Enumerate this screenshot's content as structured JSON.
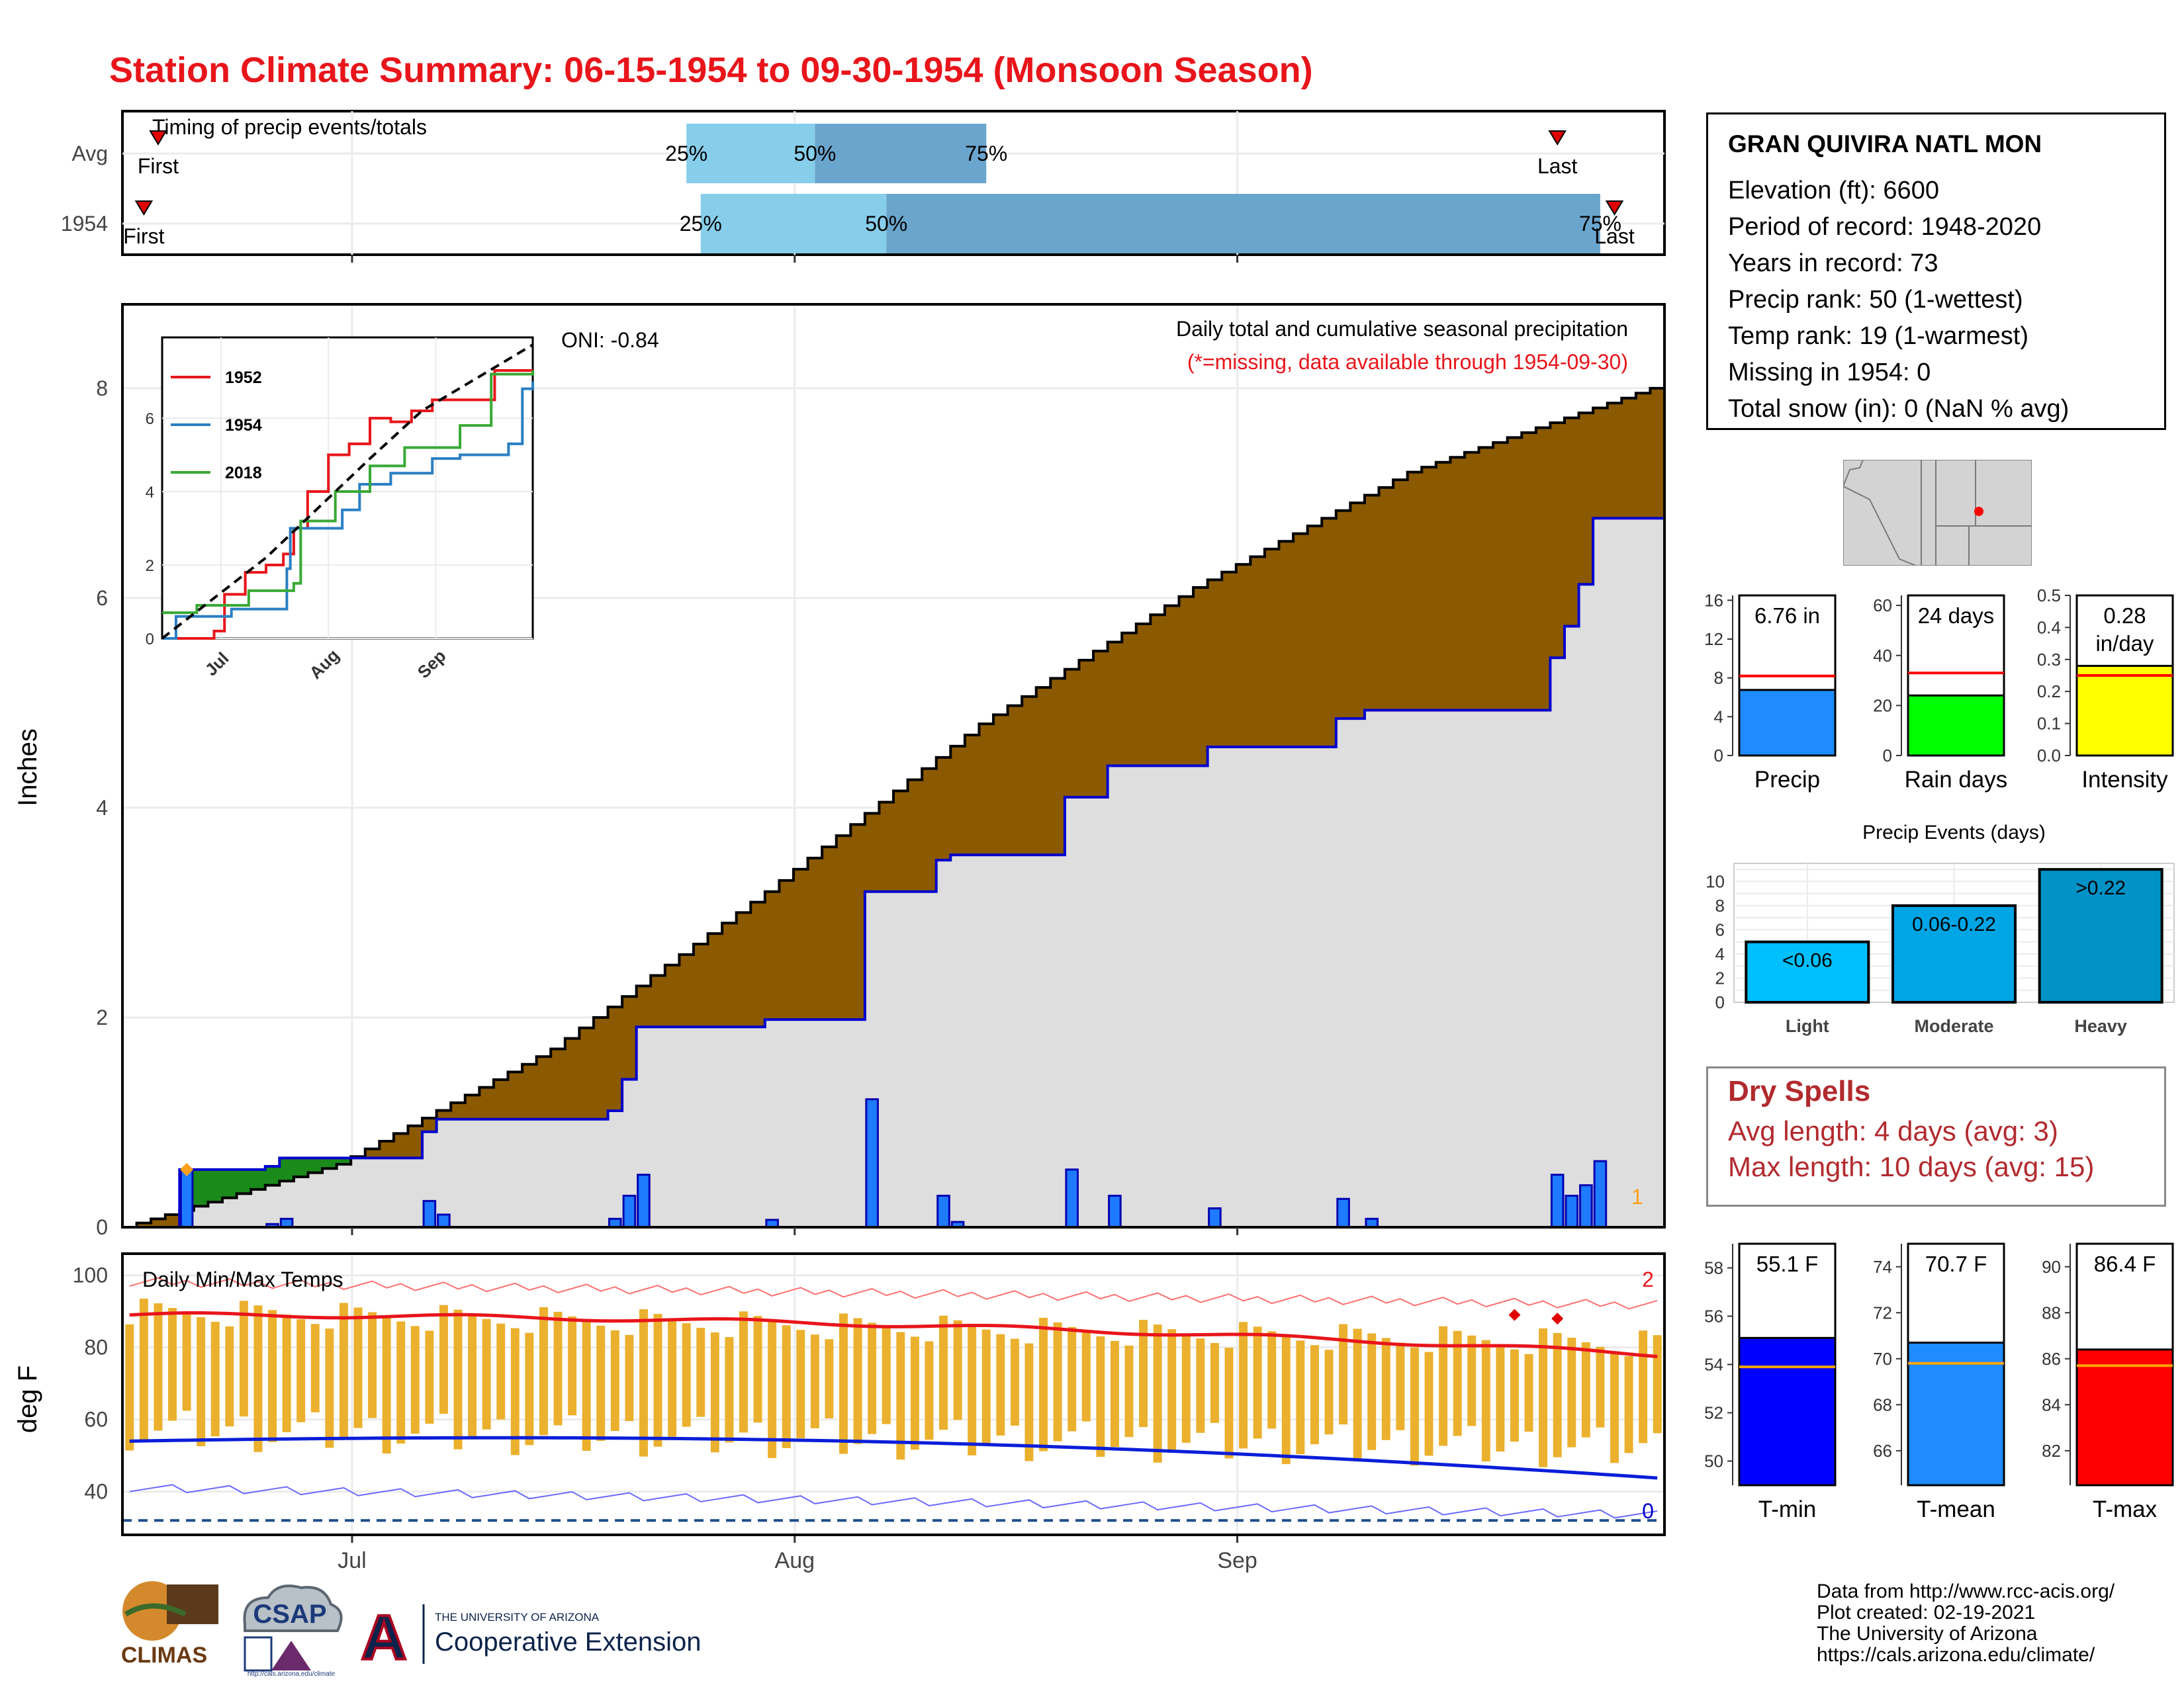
{
  "title": "Station Climate Summary: 06-15-1954 to 09-30-1954 (Monsoon Season)",
  "station": {
    "name": "GRAN QUIVIRA NATL MON",
    "rows": [
      "Elevation (ft): 6600",
      "Period of record: 1948-2020",
      "Years in record: 73",
      "Precip rank: 50 (1-wettest)",
      "Temp rank: 19 (1-warmest)",
      "Missing in 1954: 0",
      "Total snow (in): 0 (NaN % avg)"
    ]
  },
  "dry_spells": {
    "title": "Dry Spells",
    "avg": "Avg length: 4 days (avg: 3)",
    "max": "Max length: 10 days (avg: 15)"
  },
  "credits": [
    "Data from http://www.rcc-acis.org/",
    "Plot created: 02-19-2021",
    "The University of Arizona",
    "https://cals.arizona.edu/climate/"
  ],
  "logos": {
    "climas": "CLIMAS",
    "csap": "CSAP",
    "csap_url": "http://cals.arizona.edu/climate",
    "ua_small": "THE UNIVERSITY OF ARIZONA",
    "ua_big": "Cooperative Extension",
    "ua_letter": "A"
  },
  "colors": {
    "title": "#e8151b",
    "avg_fill": "#8b5a00",
    "deficit_fill": "#1a8a1a",
    "obs_line": "#0000cd",
    "bar_blue": "#1e7bff",
    "temp_bar": "#ebb02d",
    "tmax_line": "#e8151b",
    "tmin_line": "#0a1ed8"
  },
  "chart_data": [
    {
      "type": "timeline",
      "title": "Timing of precip events/totals",
      "rows": [
        {
          "label": "Avg",
          "first": "06-17",
          "p25": "07-24",
          "p50": "08-02",
          "p75": "08-14",
          "last": "09-23",
          "first_label": "First",
          "last_label": "Last",
          "p25_label": "25%",
          "p50_label": "50%",
          "p75_label": "75%"
        },
        {
          "label": "1954",
          "first": "06-16",
          "p25": "07-25",
          "p50": "08-07",
          "p75": "09-26",
          "last": "09-27",
          "first_label": "First",
          "last_label": "Last",
          "p25_label": "25%",
          "p50_label": "50%",
          "p75_label": "75%"
        }
      ],
      "x_ticks": [
        "Jul",
        "Aug",
        "Sep"
      ]
    },
    {
      "type": "line",
      "title": "Daily total and cumulative seasonal precipitation",
      "subtitle": "(*=missing, data available through 1954-09-30)",
      "annotation": "ONI: -0.84",
      "ylabel": "Inches",
      "ylim": [
        0,
        8.8
      ],
      "y_ticks": [
        "0",
        "2",
        "4",
        "6",
        "8"
      ],
      "x_ticks": [
        "Jul",
        "Aug",
        "Sep"
      ],
      "start_date": "1954-06-15",
      "end_date": "1954-09-30",
      "avg_cumulative": {
        "days": [
          0,
          15,
          30,
          45,
          60,
          75,
          90,
          107
        ],
        "values": [
          0,
          0.6,
          1.7,
          3.2,
          4.8,
          6.1,
          7.2,
          8.0
        ]
      },
      "daily_precip_1954": [
        {
          "date": "06-19",
          "value": 0.55
        },
        {
          "date": "06-25",
          "value": 0.03
        },
        {
          "date": "06-26",
          "value": 0.08
        },
        {
          "date": "07-06",
          "value": 0.25
        },
        {
          "date": "07-07",
          "value": 0.12
        },
        {
          "date": "07-19",
          "value": 0.08
        },
        {
          "date": "07-20",
          "value": 0.3
        },
        {
          "date": "07-21",
          "value": 0.5
        },
        {
          "date": "07-30",
          "value": 0.07
        },
        {
          "date": "08-06",
          "value": 1.22
        },
        {
          "date": "08-11",
          "value": 0.3
        },
        {
          "date": "08-12",
          "value": 0.05
        },
        {
          "date": "08-20",
          "value": 0.55
        },
        {
          "date": "08-23",
          "value": 0.3
        },
        {
          "date": "08-30",
          "value": 0.18
        },
        {
          "date": "09-08",
          "value": 0.27
        },
        {
          "date": "09-10",
          "value": 0.08
        },
        {
          "date": "09-23",
          "value": 0.5
        },
        {
          "date": "09-24",
          "value": 0.3
        },
        {
          "date": "09-25",
          "value": 0.4
        },
        {
          "date": "09-26",
          "value": 0.63
        }
      ],
      "cumulative_1954_final": 6.76,
      "missing_label": "1",
      "inset": {
        "type": "line",
        "x_ticks": [
          "Jul",
          "Aug",
          "Sep"
        ],
        "y_ticks": [
          "0",
          "2",
          "4",
          "6"
        ],
        "ylim": [
          0,
          8.2
        ],
        "series": [
          {
            "name": "1952",
            "color": "#e8151b",
            "days": [
              0,
              15,
              18,
              24,
              30,
              35,
              38,
              42,
              48,
              54,
              60,
              66,
              72,
              78,
              90,
              96,
              107
            ],
            "values": [
              0,
              0.2,
              1.2,
              1.8,
              2.0,
              2.3,
              3.0,
              4.0,
              5.0,
              5.3,
              6.0,
              5.9,
              6.2,
              6.5,
              6.5,
              7.3,
              7.3
            ]
          },
          {
            "name": "1954",
            "color": "#2a7fc4",
            "days": [
              0,
              4,
              20,
              36,
              37,
              52,
              57,
              66,
              78,
              86,
              100,
              104,
              107
            ],
            "values": [
              0,
              0.6,
              0.8,
              1.9,
              3.0,
              3.5,
              4.2,
              4.5,
              4.9,
              5.0,
              5.3,
              6.8,
              7.0
            ]
          },
          {
            "name": "2018",
            "color": "#39a935",
            "days": [
              0,
              10,
              25,
              38,
              40,
              50,
              60,
              70,
              86,
              95,
              107
            ],
            "values": [
              0.7,
              0.9,
              1.3,
              1.5,
              3.2,
              4.0,
              4.7,
              5.2,
              5.8,
              7.2,
              7.3
            ]
          }
        ],
        "avg_dashed": {
          "days": [
            0,
            30,
            60,
            75,
            107
          ],
          "values": [
            0,
            2.2,
            4.9,
            6.2,
            8.0
          ]
        }
      }
    },
    {
      "type": "bar",
      "title": "Daily Min/Max Temps",
      "ylabel": "deg F",
      "ylim": [
        28,
        106
      ],
      "y_ticks": [
        "40",
        "60",
        "80",
        "100"
      ],
      "x_ticks": [
        "Jul",
        "Aug",
        "Sep"
      ],
      "freeze_line": 32,
      "records_high_label": "2",
      "records_low_label": "0",
      "avg_tmax_start": 89,
      "avg_tmax_end": 78,
      "avg_tmin_start": 54,
      "avg_tmin_end": 45
    },
    {
      "type": "bar",
      "label": "Precip",
      "value": 6.76,
      "value_label": "6.76 in",
      "avg": 8.2,
      "ylim": [
        0,
        16.5
      ],
      "y_ticks": [
        "0",
        "4",
        "8",
        "12",
        "16"
      ],
      "color": "#1e8cff"
    },
    {
      "type": "bar",
      "label": "Rain days",
      "value": 24,
      "value_label": "24 days",
      "avg": 33,
      "ylim": [
        0,
        64
      ],
      "y_ticks": [
        "0",
        "20",
        "40",
        "60"
      ],
      "color": "#00ff00"
    },
    {
      "type": "bar",
      "label": "Intensity",
      "value": 0.28,
      "value_label": "0.28",
      "value_label2": "in/day",
      "avg": 0.25,
      "ylim": [
        0,
        0.5
      ],
      "y_ticks": [
        "0.0",
        "0.1",
        "0.2",
        "0.3",
        "0.4",
        "0.5"
      ],
      "color": "#ffff00"
    },
    {
      "type": "bar",
      "title": "Precip Events (days)",
      "categories": [
        "Light",
        "Moderate",
        "Heavy"
      ],
      "bar_labels": [
        "<0.06",
        "0.06-0.22",
        ">0.22"
      ],
      "values": [
        5,
        8,
        11
      ],
      "ylim": [
        0,
        11.5
      ],
      "y_ticks": [
        "0",
        "2",
        "4",
        "6",
        "8",
        "10"
      ],
      "colors": [
        "#00bfff",
        "#00a5e6",
        "#0092c7"
      ]
    },
    {
      "type": "bar",
      "label": "T-min",
      "value": 55.1,
      "value_label": "55.1 F",
      "avg": 53.9,
      "ylim": [
        49,
        59
      ],
      "y_ticks": [
        "50",
        "52",
        "54",
        "56",
        "58"
      ],
      "color": "#0000ff"
    },
    {
      "type": "bar",
      "label": "T-mean",
      "value": 70.7,
      "value_label": "70.7 F",
      "avg": 69.8,
      "ylim": [
        64.5,
        75
      ],
      "y_ticks": [
        "66",
        "68",
        "70",
        "72",
        "74"
      ],
      "color": "#1e8cff"
    },
    {
      "type": "bar",
      "label": "T-max",
      "value": 86.4,
      "value_label": "86.4 F",
      "avg": 85.7,
      "ylim": [
        80.5,
        91
      ],
      "y_ticks": [
        "82",
        "84",
        "86",
        "88",
        "90"
      ],
      "color": "#ff0000"
    }
  ]
}
